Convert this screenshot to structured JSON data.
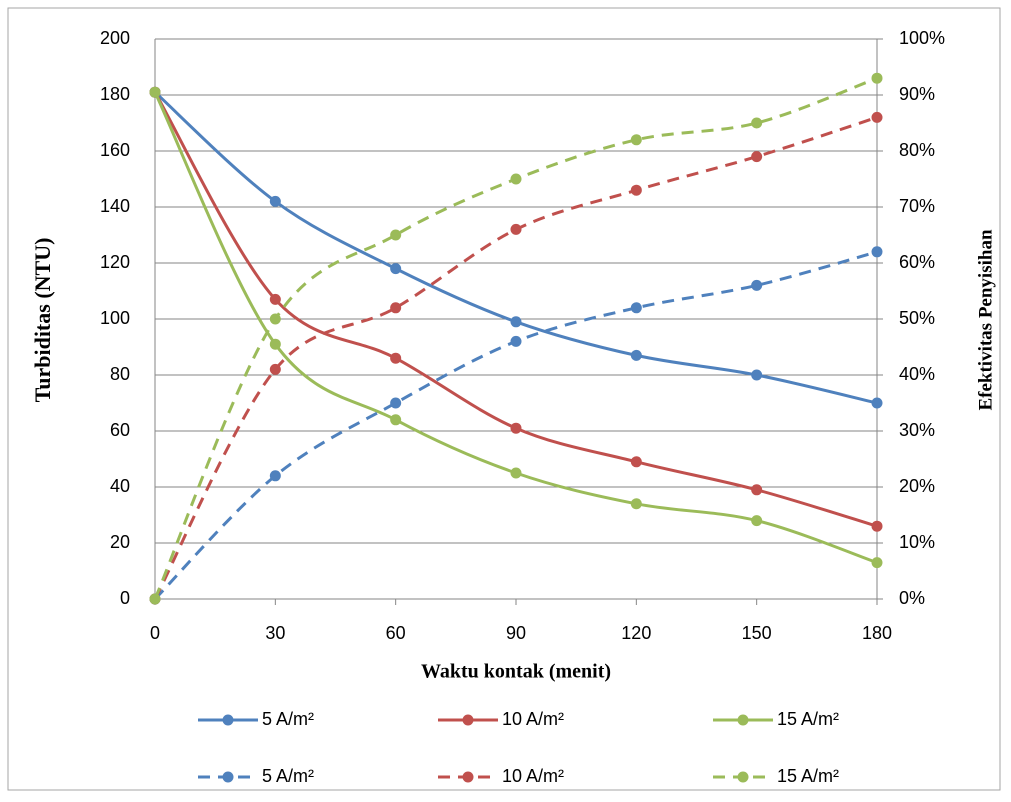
{
  "chart_data": {
    "type": "line",
    "xlabel": "Waktu kontak (menit)",
    "ylabel": "Turbiditas (NTU)",
    "y2label": "Efektivitas Penyisihan",
    "x": [
      0,
      30,
      60,
      90,
      120,
      150,
      180
    ],
    "xlim": [
      0,
      180
    ],
    "xticks": [
      0,
      30,
      60,
      90,
      120,
      150,
      180
    ],
    "ylim": [
      0,
      200
    ],
    "yticks": [
      0,
      20,
      40,
      60,
      80,
      100,
      120,
      140,
      160,
      180,
      200
    ],
    "y2lim": [
      0,
      100
    ],
    "y2ticks": [
      {
        "value": 0,
        "label": "0%"
      },
      {
        "value": 10,
        "label": "10%"
      },
      {
        "value": 20,
        "label": "20%"
      },
      {
        "value": 30,
        "label": "30%"
      },
      {
        "value": 40,
        "label": "40%"
      },
      {
        "value": 50,
        "label": "50%"
      },
      {
        "value": 60,
        "label": "60%"
      },
      {
        "value": 70,
        "label": "70%"
      },
      {
        "value": 80,
        "label": "80%"
      },
      {
        "value": 90,
        "label": "90%"
      },
      {
        "value": 100,
        "label": "100%"
      }
    ],
    "grid": true,
    "series": [
      {
        "name": "5 A/m²",
        "color": "#4f81bd",
        "values": [
          181,
          142,
          118,
          99,
          87,
          80,
          70
        ]
      },
      {
        "name": "10 A/m²",
        "color": "#c0504d",
        "values": [
          181,
          107,
          86,
          61,
          49,
          39,
          26
        ]
      },
      {
        "name": "15 A/m²",
        "color": "#9bbb59",
        "values": [
          181,
          91,
          64,
          45,
          34,
          28,
          13
        ]
      },
      {
        "name": "5 A/m²",
        "color": "#4f81bd",
        "axis": "y2",
        "dashed": true,
        "values": [
          0,
          22,
          35,
          46,
          52,
          56,
          62
        ]
      },
      {
        "name": "10 A/m²",
        "color": "#c0504d",
        "axis": "y2",
        "dashed": true,
        "values": [
          0,
          41,
          52,
          66,
          73,
          79,
          86
        ]
      },
      {
        "name": "15 A/m²",
        "color": "#9bbb59",
        "axis": "y2",
        "dashed": true,
        "values": [
          0,
          50,
          65,
          75,
          82,
          85,
          93
        ]
      }
    ]
  }
}
